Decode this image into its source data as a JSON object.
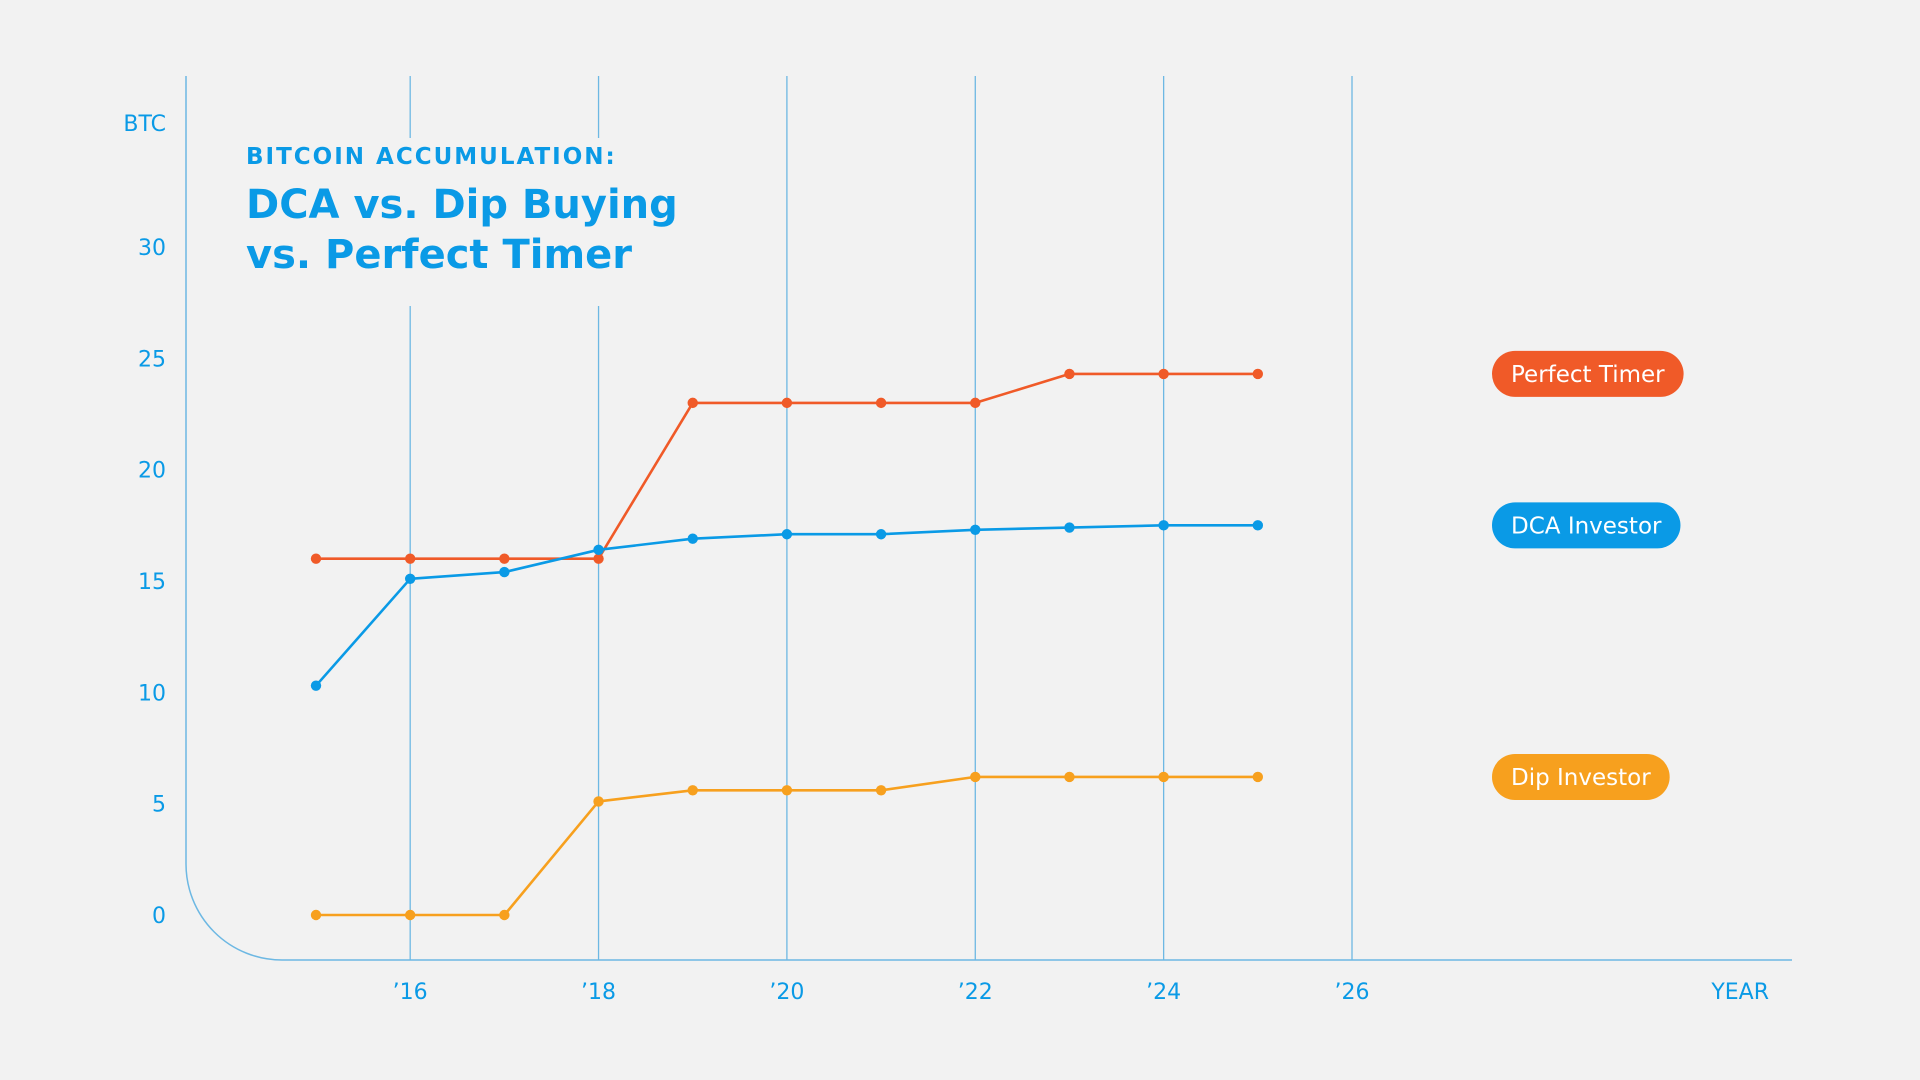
{
  "title": {
    "kicker": "BITCOIN ACCUMULATION:",
    "line1": "DCA vs. Dip Buying",
    "line2": "vs. Perfect Timer"
  },
  "chart_data": {
    "type": "line",
    "ylabel": "BTC",
    "xlabel": "YEAR",
    "ylim": [
      -2,
      36
    ],
    "xlim": [
      2014,
      2027
    ],
    "y_ticks": [
      0,
      5,
      10,
      15,
      20,
      25,
      30
    ],
    "y_tick_labels": [
      "0",
      "5",
      "10",
      "15",
      "20",
      "25",
      "30"
    ],
    "x_ticks": [
      2016,
      2018,
      2020,
      2022,
      2024,
      2026
    ],
    "x_tick_labels": [
      "’16",
      "’18",
      "’20",
      "’22",
      "’24",
      "’26"
    ],
    "grid": "vertical",
    "x": [
      2015,
      2016,
      2017,
      2018,
      2019,
      2020,
      2021,
      2022,
      2023,
      2024,
      2025
    ],
    "series": [
      {
        "name": "Perfect Timer",
        "color": "#f05a28",
        "values": [
          16.0,
          16.0,
          16.0,
          16.0,
          23.0,
          23.0,
          23.0,
          23.0,
          24.3,
          24.3,
          24.3
        ]
      },
      {
        "name": "DCA Investor",
        "color": "#0a9ae6",
        "values": [
          10.3,
          15.1,
          15.4,
          16.4,
          16.9,
          17.1,
          17.1,
          17.3,
          17.4,
          17.5,
          17.5
        ]
      },
      {
        "name": "Dip Investor",
        "color": "#f7a01e",
        "values": [
          0,
          0,
          0,
          5.1,
          5.6,
          5.6,
          5.6,
          6.2,
          6.2,
          6.2,
          6.2
        ]
      }
    ]
  }
}
